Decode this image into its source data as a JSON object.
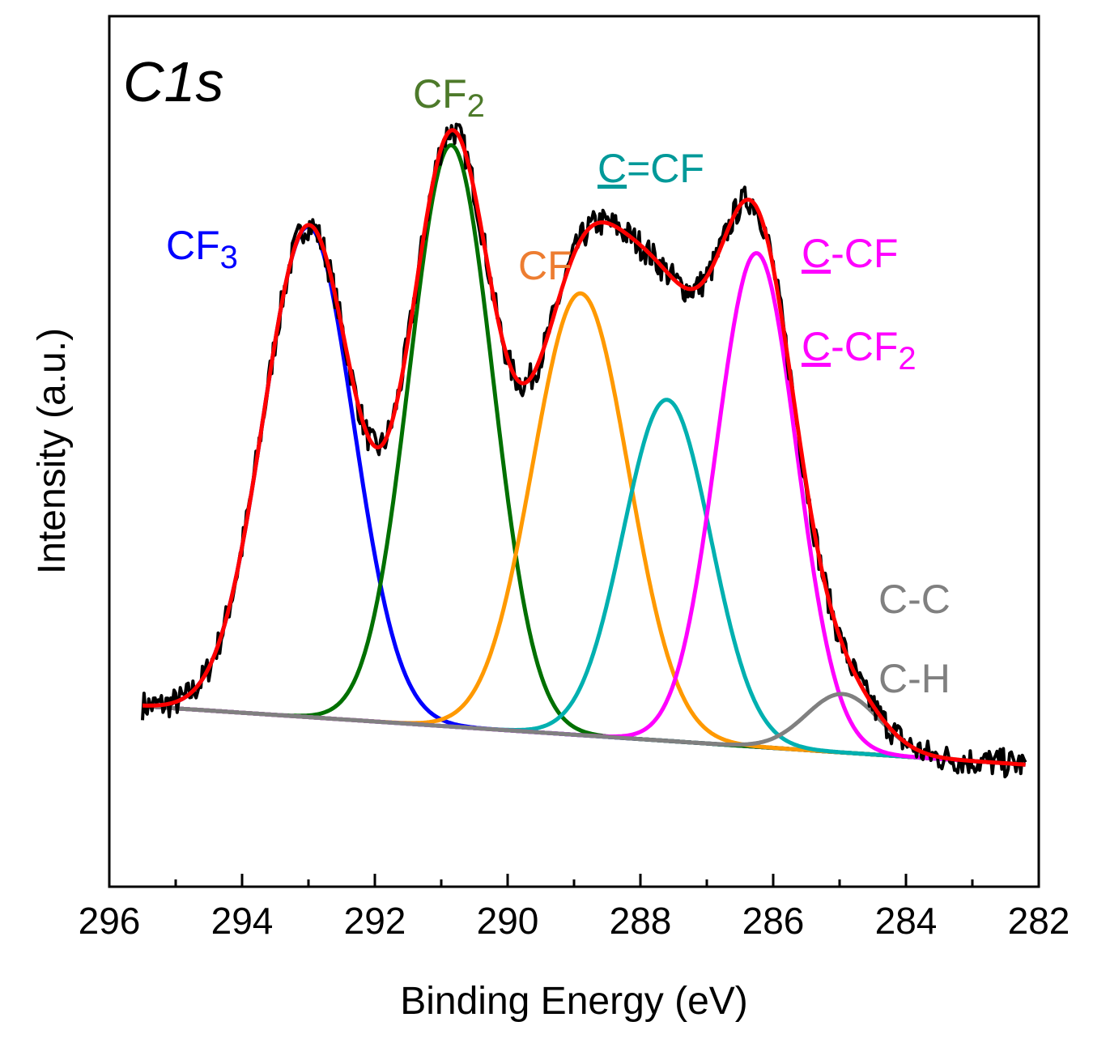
{
  "chart_data": {
    "type": "line",
    "panel_label": "C1s",
    "xlabel": "Binding Energy (eV)",
    "ylabel": "Intensity (a.u.)",
    "x_reversed": true,
    "xlim": [
      296,
      282
    ],
    "ylim": [
      -1.2,
      11.2
    ],
    "y_ticks_visible": false,
    "grid": false,
    "x_ticks": [
      {
        "value": 296,
        "label": "296"
      },
      {
        "value": 294,
        "label": "294"
      },
      {
        "value": 292,
        "label": "292"
      },
      {
        "value": 290,
        "label": "290"
      },
      {
        "value": 288,
        "label": "288"
      },
      {
        "value": 286,
        "label": "286"
      },
      {
        "value": 284,
        "label": "284"
      },
      {
        "value": 282,
        "label": "282"
      }
    ],
    "x_minor_ticks": [
      295,
      293,
      291,
      289,
      287,
      285,
      283
    ],
    "background": {
      "color": "#808080",
      "x_start": 295.5,
      "x_end": 282.2,
      "y_start": 0.0,
      "y_end": -0.9,
      "midpoint_sag": 0.2
    },
    "peaks": [
      {
        "label_parts": [
          {
            "t": "CF"
          },
          {
            "t": "3",
            "sub": true
          }
        ],
        "color": "#0000ff",
        "label_color": "#0000ff",
        "center": 293.0,
        "height": 7.55,
        "fwhm": 1.6
      },
      {
        "label_parts": [
          {
            "t": "CF"
          },
          {
            "t": "2",
            "sub": true
          }
        ],
        "color": "#007000",
        "label_color": "#4d7a2a",
        "center": 290.85,
        "height": 8.95,
        "fwhm": 1.48
      },
      {
        "label_parts": [
          {
            "t": "CF"
          }
        ],
        "color": "#ff9900",
        "label_color": "#ed7d31",
        "center": 288.9,
        "height": 6.8,
        "fwhm": 1.7
      },
      {
        "label_parts": [
          {
            "t": "C",
            "u": true
          },
          {
            "t": "=CF"
          }
        ],
        "color": "#00b0b0",
        "label_color": "#009999",
        "center": 287.6,
        "height": 5.25,
        "fwhm": 1.55
      },
      {
        "label_parts": [
          {
            "t": "C",
            "u": true
          },
          {
            "t": "-CF"
          }
        ],
        "label_parts2": [
          {
            "t": "C",
            "u": true
          },
          {
            "t": "-CF"
          },
          {
            "t": "2",
            "sub": true
          }
        ],
        "color": "#ff00ff",
        "label_color": "#ff00ff",
        "center": 286.25,
        "height": 7.6,
        "fwhm": 1.42
      },
      {
        "label_parts": [
          {
            "t": "C-C"
          }
        ],
        "label_parts2": [
          {
            "t": "C-H"
          }
        ],
        "color": "#808080",
        "label_color": "#808080",
        "center": 284.95,
        "height": 0.9,
        "fwhm": 1.3
      }
    ],
    "series": [
      {
        "name": "",
        "color": "#000000",
        "role": "measured"
      },
      {
        "name": "",
        "color": "#ff0000",
        "role": "envelope"
      }
    ]
  }
}
